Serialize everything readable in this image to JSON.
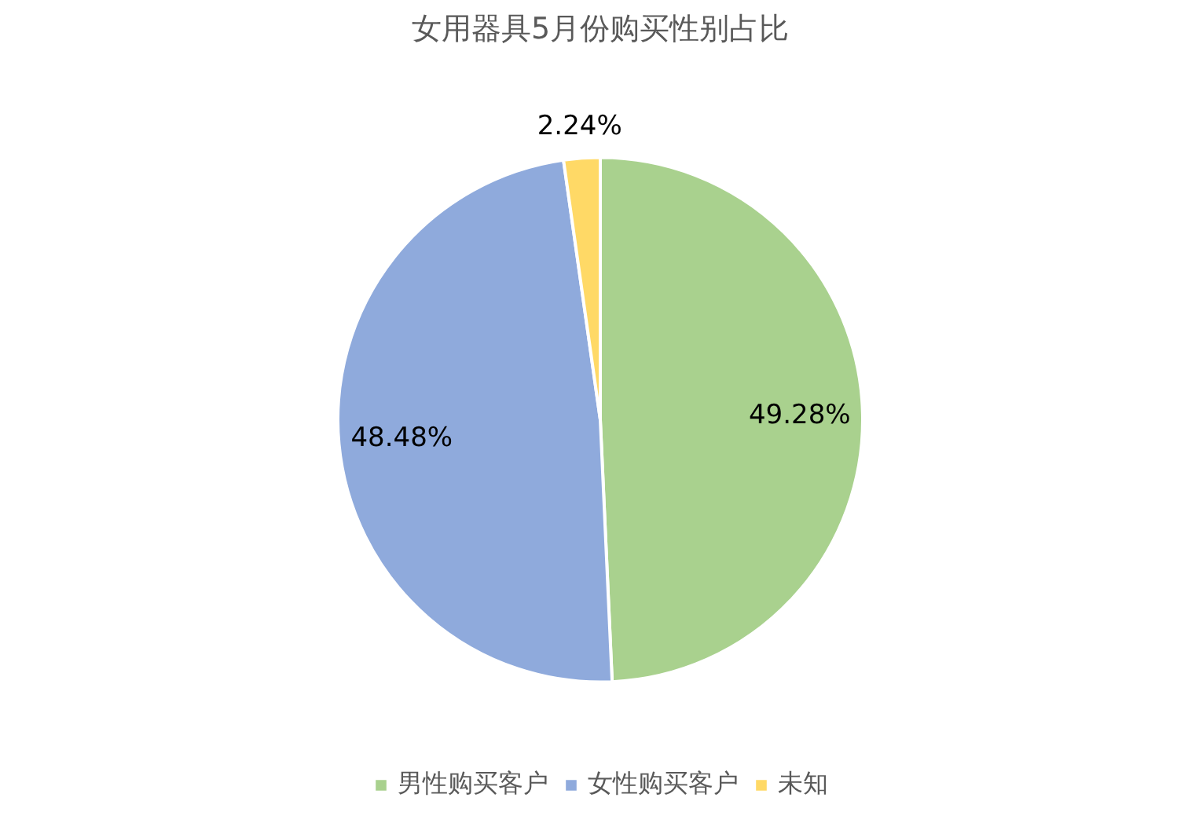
{
  "chart_data": {
    "type": "pie",
    "title": "女用器具5月份购买性别占比",
    "categories": [
      "男性购买客户",
      "女性购买客户",
      "未知"
    ],
    "values": [
      49.28,
      48.48,
      2.24
    ],
    "colors": [
      "#a9d18e",
      "#8faadc",
      "#ffd966"
    ],
    "value_labels": [
      "49.28%",
      "48.48%",
      "2.24%"
    ],
    "legend": "bottom"
  }
}
